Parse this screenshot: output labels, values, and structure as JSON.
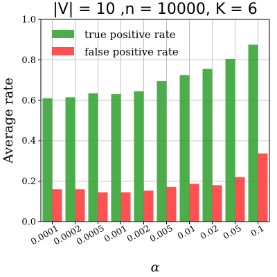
{
  "chart_data": {
    "type": "bar",
    "title": "|V| = 10 ,n = 10000, K = 6",
    "xlabel": "α",
    "ylabel": "Average rate",
    "categories": [
      "0.0001",
      "0.0002",
      "0.0005",
      "0.001",
      "0.002",
      "0.005",
      "0.01",
      "0.02",
      "0.05",
      "0.1"
    ],
    "ylim": [
      0.0,
      1.0
    ],
    "yticks": [
      "0.0",
      "0.2",
      "0.4",
      "0.6",
      "0.8",
      "1.0"
    ],
    "grid": true,
    "legend_position": "top-left",
    "series": [
      {
        "name": "true positive rate",
        "color": "#2ca02c",
        "values": [
          0.61,
          0.615,
          0.635,
          0.63,
          0.645,
          0.695,
          0.725,
          0.755,
          0.805,
          0.875
        ]
      },
      {
        "name": "false positive rate",
        "color": "#ff3333",
        "values": [
          0.16,
          0.16,
          0.145,
          0.145,
          0.153,
          0.172,
          0.187,
          0.18,
          0.22,
          0.337
        ]
      }
    ]
  }
}
